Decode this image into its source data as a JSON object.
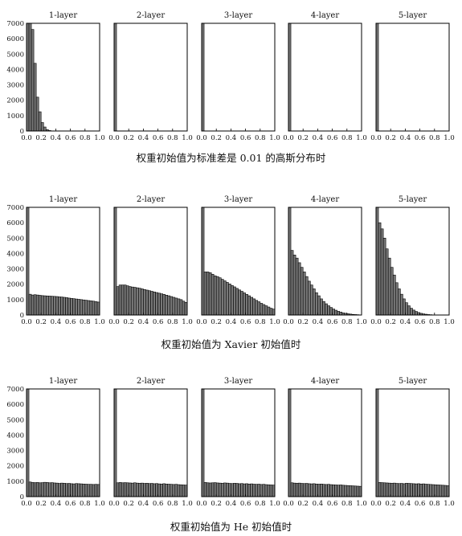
{
  "colors": {
    "bar_fill": "#777777",
    "bar_stroke": "#000000",
    "frame": "#000000"
  },
  "x_ticks": [
    "0.0",
    "0.2",
    "0.4",
    "0.6",
    "0.8",
    "1.0"
  ],
  "y_ticks": [
    "0",
    "1000",
    "2000",
    "3000",
    "4000",
    "5000",
    "6000",
    "7000"
  ],
  "chart_data": [
    {
      "type": "bar",
      "caption": "权重初始值为标准差是 0.01 的高斯分布时",
      "xlim": [
        0,
        1
      ],
      "ylim": [
        0,
        7000
      ],
      "bins": 30,
      "shared_y": true,
      "panels": [
        {
          "title": "1-layer",
          "values": [
            7000,
            7000,
            6600,
            4400,
            2200,
            1250,
            550,
            260,
            90,
            30,
            10,
            0,
            0,
            0,
            0,
            0,
            0,
            0,
            0,
            0,
            0,
            0,
            0,
            0,
            0,
            0,
            0,
            0,
            0,
            0
          ]
        },
        {
          "title": "2-layer",
          "values": [
            7000,
            0,
            0,
            0,
            0,
            0,
            0,
            0,
            0,
            0,
            0,
            0,
            0,
            0,
            0,
            0,
            0,
            0,
            0,
            0,
            0,
            0,
            0,
            0,
            0,
            0,
            0,
            0,
            0,
            0
          ]
        },
        {
          "title": "3-layer",
          "values": [
            7000,
            0,
            0,
            0,
            0,
            0,
            0,
            0,
            0,
            0,
            0,
            0,
            0,
            0,
            0,
            0,
            0,
            0,
            0,
            0,
            0,
            0,
            0,
            0,
            0,
            0,
            0,
            0,
            0,
            0
          ]
        },
        {
          "title": "4-layer",
          "values": [
            7000,
            0,
            0,
            0,
            0,
            0,
            0,
            0,
            0,
            0,
            0,
            0,
            0,
            0,
            0,
            0,
            0,
            0,
            0,
            0,
            0,
            0,
            0,
            0,
            0,
            0,
            0,
            0,
            0,
            0
          ]
        },
        {
          "title": "5-layer",
          "values": [
            7000,
            0,
            0,
            0,
            0,
            0,
            0,
            0,
            0,
            0,
            0,
            0,
            0,
            0,
            0,
            0,
            0,
            0,
            0,
            0,
            0,
            0,
            0,
            0,
            0,
            0,
            0,
            0,
            0,
            0
          ]
        }
      ]
    },
    {
      "type": "bar",
      "caption": "权重初始值为 Xavier 初始值时",
      "xlim": [
        0,
        1
      ],
      "ylim": [
        0,
        7000
      ],
      "bins": 30,
      "shared_y": true,
      "panels": [
        {
          "title": "1-layer",
          "values": [
            7000,
            1350,
            1300,
            1320,
            1300,
            1280,
            1260,
            1250,
            1240,
            1230,
            1220,
            1210,
            1200,
            1180,
            1170,
            1150,
            1130,
            1100,
            1080,
            1060,
            1040,
            1020,
            1000,
            980,
            960,
            940,
            920,
            900,
            870,
            840
          ]
        },
        {
          "title": "2-layer",
          "values": [
            7000,
            1850,
            1950,
            1950,
            1950,
            1900,
            1850,
            1820,
            1800,
            1770,
            1740,
            1700,
            1660,
            1620,
            1580,
            1540,
            1500,
            1460,
            1420,
            1380,
            1340,
            1290,
            1250,
            1200,
            1150,
            1100,
            1050,
            1000,
            900,
            820
          ]
        },
        {
          "title": "3-layer",
          "values": [
            7000,
            2800,
            2800,
            2750,
            2650,
            2550,
            2500,
            2420,
            2320,
            2220,
            2120,
            2020,
            1920,
            1830,
            1730,
            1630,
            1540,
            1440,
            1340,
            1250,
            1150,
            1050,
            950,
            860,
            760,
            680,
            600,
            520,
            440,
            380
          ]
        },
        {
          "title": "4-layer",
          "values": [
            7000,
            4200,
            3900,
            3700,
            3400,
            3100,
            2800,
            2500,
            2200,
            1950,
            1700,
            1450,
            1250,
            1050,
            880,
            730,
            600,
            490,
            390,
            310,
            240,
            190,
            140,
            110,
            80,
            60,
            40,
            30,
            20,
            10
          ]
        },
        {
          "title": "5-layer",
          "values": [
            7000,
            6000,
            5600,
            5000,
            4300,
            3700,
            3100,
            2600,
            2100,
            1700,
            1350,
            1050,
            800,
            600,
            440,
            320,
            230,
            160,
            110,
            75,
            50,
            30,
            20,
            10,
            5,
            0,
            0,
            0,
            0,
            0
          ]
        }
      ]
    },
    {
      "type": "bar",
      "caption": "权重初始值为 He 初始值时",
      "xlim": [
        0,
        1
      ],
      "ylim": [
        0,
        7000
      ],
      "bins": 30,
      "shared_y": true,
      "panels": [
        {
          "title": "1-layer",
          "values": [
            7000,
            950,
            920,
            910,
            920,
            900,
            910,
            930,
            920,
            900,
            910,
            890,
            880,
            860,
            880,
            870,
            850,
            860,
            840,
            830,
            850,
            840,
            830,
            820,
            810,
            800,
            800,
            790,
            800,
            790
          ]
        },
        {
          "title": "2-layer",
          "values": [
            7000,
            900,
            920,
            900,
            910,
            900,
            890,
            880,
            900,
            880,
            870,
            880,
            860,
            870,
            850,
            860,
            840,
            850,
            830,
            820,
            840,
            820,
            810,
            800,
            790,
            800,
            780,
            770,
            760,
            750
          ]
        },
        {
          "title": "3-layer",
          "values": [
            7000,
            920,
            900,
            890,
            900,
            910,
            890,
            880,
            870,
            890,
            880,
            860,
            850,
            870,
            860,
            840,
            850,
            830,
            840,
            820,
            830,
            810,
            800,
            810,
            790,
            800,
            780,
            770,
            760,
            750
          ]
        },
        {
          "title": "4-layer",
          "values": [
            7000,
            900,
            880,
            870,
            880,
            860,
            850,
            860,
            840,
            830,
            840,
            820,
            810,
            820,
            800,
            790,
            800,
            780,
            770,
            760,
            750,
            760,
            740,
            730,
            720,
            710,
            700,
            690,
            680,
            670
          ]
        },
        {
          "title": "5-layer",
          "values": [
            7000,
            920,
            910,
            900,
            890,
            880,
            870,
            880,
            860,
            850,
            860,
            840,
            870,
            860,
            850,
            840,
            830,
            840,
            820,
            830,
            810,
            800,
            790,
            780,
            770,
            760,
            750,
            740,
            730,
            710
          ]
        }
      ]
    }
  ]
}
